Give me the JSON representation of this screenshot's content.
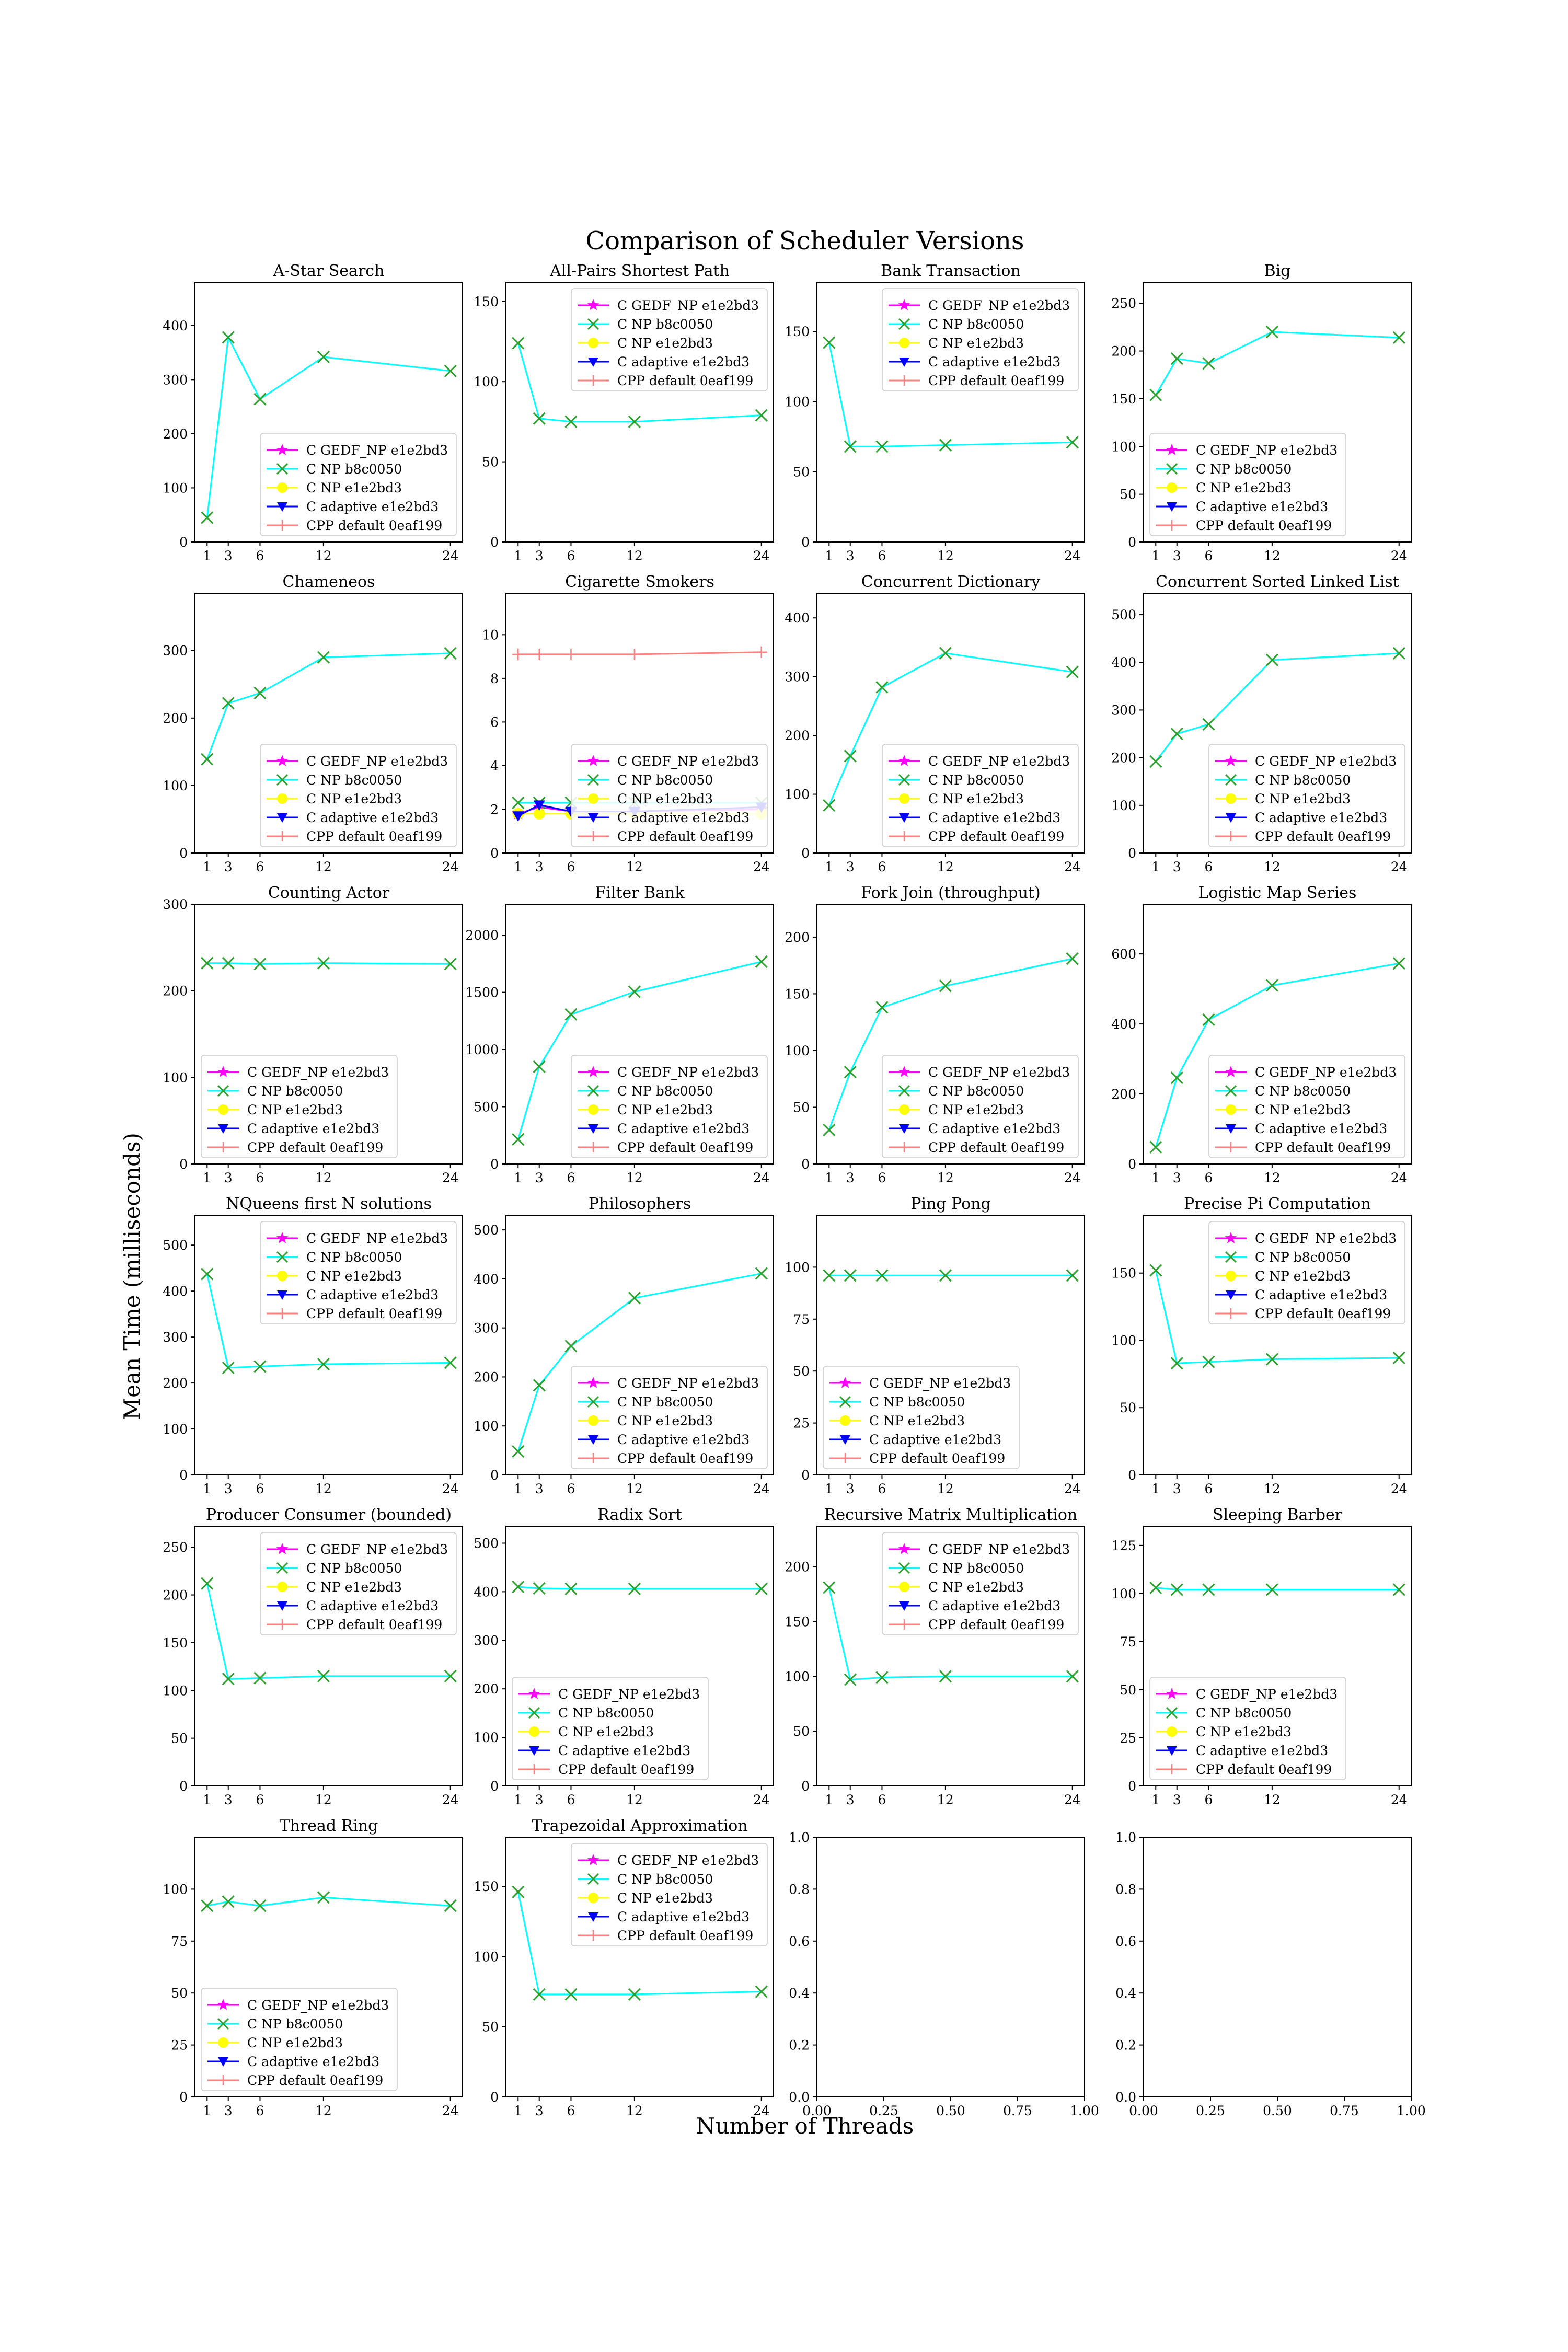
{
  "figure": {
    "suptitle": "Comparison of Scheduler Versions",
    "xlabel": "Number of Threads",
    "ylabel": "Mean Time (milliseconds)"
  },
  "series_styles": [
    {
      "name": "C GEDF_NP e1e2bd3",
      "color": "#ff00ff",
      "marker": "star"
    },
    {
      "name": "C NP b8c0050",
      "color": "#00ffff",
      "marker": "x",
      "marker_color": "#2ca02c"
    },
    {
      "name": "C NP e1e2bd3",
      "color": "#ffff00",
      "marker": "circle"
    },
    {
      "name": "C adaptive e1e2bd3",
      "color": "#0000ff",
      "marker": "triangle-down"
    },
    {
      "name": "CPP default 0eaf199",
      "color": "#ff8080",
      "marker": "plus"
    }
  ],
  "chart_data": [
    {
      "type": "line",
      "title": "A-Star Search",
      "x": [
        1,
        3,
        6,
        12,
        24
      ],
      "xticks": [
        1,
        3,
        6,
        12,
        24
      ],
      "ylim": [
        0,
        480
      ],
      "yticks": [
        0,
        100,
        200,
        300,
        400
      ],
      "legend": "lower-right",
      "series": [
        {
          "name": "C NP b8c0050",
          "values": [
            45,
            378,
            264,
            342,
            316
          ]
        }
      ]
    },
    {
      "type": "line",
      "title": "All-Pairs Shortest Path",
      "x": [
        1,
        3,
        6,
        12,
        24
      ],
      "xticks": [
        1,
        3,
        6,
        12,
        24
      ],
      "ylim": [
        0,
        162
      ],
      "yticks": [
        0,
        50,
        100,
        150
      ],
      "legend": "upper-right",
      "series": [
        {
          "name": "C NP b8c0050",
          "values": [
            124,
            77,
            75,
            75,
            79
          ]
        }
      ]
    },
    {
      "type": "line",
      "title": "Bank Transaction",
      "x": [
        1,
        3,
        6,
        12,
        24
      ],
      "xticks": [
        1,
        3,
        6,
        12,
        24
      ],
      "ylim": [
        0,
        185
      ],
      "yticks": [
        0,
        50,
        100,
        150
      ],
      "legend": "upper-right",
      "series": [
        {
          "name": "C NP b8c0050",
          "values": [
            142,
            68,
            68,
            69,
            71
          ]
        }
      ]
    },
    {
      "type": "line",
      "title": "Big",
      "x": [
        1,
        3,
        6,
        12,
        24
      ],
      "xticks": [
        1,
        3,
        6,
        12,
        24
      ],
      "ylim": [
        0,
        272
      ],
      "yticks": [
        0,
        50,
        100,
        150,
        200,
        250
      ],
      "legend": "lower-left",
      "series": [
        {
          "name": "C NP b8c0050",
          "values": [
            154,
            192,
            187,
            220,
            214
          ]
        }
      ]
    },
    {
      "type": "line",
      "title": "Chameneos",
      "x": [
        1,
        3,
        6,
        12,
        24
      ],
      "xticks": [
        1,
        3,
        6,
        12,
        24
      ],
      "ylim": [
        0,
        385
      ],
      "yticks": [
        0,
        100,
        200,
        300
      ],
      "legend": "lower-right",
      "series": [
        {
          "name": "C NP b8c0050",
          "values": [
            139,
            222,
            237,
            290,
            296
          ]
        }
      ]
    },
    {
      "type": "line",
      "title": "Cigarette Smokers",
      "x": [
        1,
        3,
        6,
        12,
        24
      ],
      "xticks": [
        1,
        3,
        6,
        12,
        24
      ],
      "ylim": [
        0,
        11.9
      ],
      "yticks": [
        0,
        2,
        4,
        6,
        8,
        10
      ],
      "legend": "lower-right",
      "series": [
        {
          "name": "C GEDF_NP e1e2bd3",
          "values": [
            1.8,
            2.1,
            1.9,
            1.9,
            2.0
          ]
        },
        {
          "name": "C NP b8c0050",
          "values": [
            2.3,
            2.3,
            2.3,
            2.3,
            2.3
          ]
        },
        {
          "name": "C NP e1e2bd3",
          "values": [
            1.8,
            1.8,
            1.8,
            1.8,
            1.8
          ]
        },
        {
          "name": "C adaptive e1e2bd3",
          "values": [
            1.7,
            2.2,
            1.9,
            1.9,
            2.1
          ]
        },
        {
          "name": "CPP default 0eaf199",
          "values": [
            9.1,
            9.1,
            9.1,
            9.1,
            9.2
          ]
        }
      ]
    },
    {
      "type": "line",
      "title": "Concurrent Dictionary",
      "x": [
        1,
        3,
        6,
        12,
        24
      ],
      "xticks": [
        1,
        3,
        6,
        12,
        24
      ],
      "ylim": [
        0,
        442
      ],
      "yticks": [
        0,
        100,
        200,
        300,
        400
      ],
      "legend": "lower-right",
      "series": [
        {
          "name": "C NP b8c0050",
          "values": [
            81,
            165,
            282,
            340,
            308
          ]
        }
      ]
    },
    {
      "type": "line",
      "title": "Concurrent Sorted Linked List",
      "x": [
        1,
        3,
        6,
        12,
        24
      ],
      "xticks": [
        1,
        3,
        6,
        12,
        24
      ],
      "ylim": [
        0,
        545
      ],
      "yticks": [
        0,
        100,
        200,
        300,
        400,
        500
      ],
      "legend": "lower-right",
      "series": [
        {
          "name": "C NP b8c0050",
          "values": [
            192,
            250,
            270,
            405,
            419
          ]
        }
      ]
    },
    {
      "type": "line",
      "title": "Counting Actor",
      "x": [
        1,
        3,
        6,
        12,
        24
      ],
      "xticks": [
        1,
        3,
        6,
        12,
        24
      ],
      "ylim": [
        0,
        300
      ],
      "yticks": [
        0,
        100,
        200,
        300
      ],
      "legend": "lower-left",
      "series": [
        {
          "name": "C NP b8c0050",
          "values": [
            232,
            232,
            231,
            232,
            231
          ]
        }
      ]
    },
    {
      "type": "line",
      "title": "Filter Bank",
      "x": [
        1,
        3,
        6,
        12,
        24
      ],
      "xticks": [
        1,
        3,
        6,
        12,
        24
      ],
      "ylim": [
        0,
        2270
      ],
      "yticks": [
        0,
        500,
        1000,
        1500,
        2000
      ],
      "legend": "lower-right",
      "series": [
        {
          "name": "C NP b8c0050",
          "values": [
            215,
            850,
            1307,
            1505,
            1768
          ]
        }
      ]
    },
    {
      "type": "line",
      "title": "Fork Join (throughput)",
      "x": [
        1,
        3,
        6,
        12,
        24
      ],
      "xticks": [
        1,
        3,
        6,
        12,
        24
      ],
      "ylim": [
        0,
        229
      ],
      "yticks": [
        0,
        50,
        100,
        150,
        200
      ],
      "legend": "lower-right",
      "series": [
        {
          "name": "C NP b8c0050",
          "values": [
            30,
            81,
            138,
            157,
            181
          ]
        }
      ]
    },
    {
      "type": "line",
      "title": "Logistic Map Series",
      "x": [
        1,
        3,
        6,
        12,
        24
      ],
      "xticks": [
        1,
        3,
        6,
        12,
        24
      ],
      "ylim": [
        0,
        742
      ],
      "yticks": [
        0,
        200,
        400,
        600
      ],
      "legend": "lower-right",
      "series": [
        {
          "name": "C NP b8c0050",
          "values": [
            48,
            246,
            412,
            510,
            573
          ]
        }
      ]
    },
    {
      "type": "line",
      "title": "NQueens first N solutions",
      "x": [
        1,
        3,
        6,
        12,
        24
      ],
      "xticks": [
        1,
        3,
        6,
        12,
        24
      ],
      "ylim": [
        0,
        565
      ],
      "yticks": [
        0,
        100,
        200,
        300,
        400,
        500
      ],
      "legend": "upper-right",
      "series": [
        {
          "name": "C NP b8c0050",
          "values": [
            437,
            233,
            236,
            241,
            244
          ]
        }
      ]
    },
    {
      "type": "line",
      "title": "Philosophers",
      "x": [
        1,
        3,
        6,
        12,
        24
      ],
      "xticks": [
        1,
        3,
        6,
        12,
        24
      ],
      "ylim": [
        0,
        530
      ],
      "yticks": [
        0,
        100,
        200,
        300,
        400,
        500
      ],
      "legend": "lower-right",
      "series": [
        {
          "name": "C NP b8c0050",
          "values": [
            48,
            183,
            263,
            361,
            411
          ]
        }
      ]
    },
    {
      "type": "line",
      "title": "Ping Pong",
      "x": [
        1,
        3,
        6,
        12,
        24
      ],
      "xticks": [
        1,
        3,
        6,
        12,
        24
      ],
      "ylim": [
        0,
        125
      ],
      "yticks": [
        0,
        25,
        50,
        75,
        100
      ],
      "legend": "lower-left",
      "series": [
        {
          "name": "C NP b8c0050",
          "values": [
            96,
            96,
            96,
            96,
            96
          ]
        }
      ]
    },
    {
      "type": "line",
      "title": "Precise Pi Computation",
      "x": [
        1,
        3,
        6,
        12,
        24
      ],
      "xticks": [
        1,
        3,
        6,
        12,
        24
      ],
      "ylim": [
        0,
        193
      ],
      "yticks": [
        0,
        50,
        100,
        150
      ],
      "legend": "upper-right",
      "series": [
        {
          "name": "C NP b8c0050",
          "values": [
            152,
            83,
            84,
            86,
            87
          ]
        }
      ]
    },
    {
      "type": "line",
      "title": "Producer Consumer (bounded)",
      "x": [
        1,
        3,
        6,
        12,
        24
      ],
      "xticks": [
        1,
        3,
        6,
        12,
        24
      ],
      "ylim": [
        0,
        272
      ],
      "yticks": [
        0,
        50,
        100,
        150,
        200,
        250
      ],
      "legend": "upper-right",
      "series": [
        {
          "name": "C NP b8c0050",
          "values": [
            212,
            112,
            113,
            115,
            115
          ]
        }
      ]
    },
    {
      "type": "line",
      "title": "Radix Sort",
      "x": [
        1,
        3,
        6,
        12,
        24
      ],
      "xticks": [
        1,
        3,
        6,
        12,
        24
      ],
      "ylim": [
        0,
        535
      ],
      "yticks": [
        0,
        100,
        200,
        300,
        400,
        500
      ],
      "legend": "lower-left",
      "series": [
        {
          "name": "C NP b8c0050",
          "values": [
            410,
            407,
            406,
            406,
            406
          ]
        }
      ]
    },
    {
      "type": "line",
      "title": "Recursive Matrix Multiplication",
      "x": [
        1,
        3,
        6,
        12,
        24
      ],
      "xticks": [
        1,
        3,
        6,
        12,
        24
      ],
      "ylim": [
        0,
        237
      ],
      "yticks": [
        0,
        50,
        100,
        150,
        200
      ],
      "legend": "upper-right",
      "series": [
        {
          "name": "C NP b8c0050",
          "values": [
            181,
            97,
            99,
            100,
            100
          ]
        }
      ]
    },
    {
      "type": "line",
      "title": "Sleeping Barber",
      "x": [
        1,
        3,
        6,
        12,
        24
      ],
      "xticks": [
        1,
        3,
        6,
        12,
        24
      ],
      "ylim": [
        0,
        135
      ],
      "yticks": [
        0,
        25,
        50,
        75,
        100,
        125
      ],
      "legend": "lower-left",
      "series": [
        {
          "name": "C NP b8c0050",
          "values": [
            103,
            102,
            102,
            102,
            102
          ]
        }
      ]
    },
    {
      "type": "line",
      "title": "Thread Ring",
      "x": [
        1,
        3,
        6,
        12,
        24
      ],
      "xticks": [
        1,
        3,
        6,
        12,
        24
      ],
      "ylim": [
        0,
        125
      ],
      "yticks": [
        0,
        25,
        50,
        75,
        100
      ],
      "legend": "lower-left",
      "series": [
        {
          "name": "C NP b8c0050",
          "values": [
            92,
            94,
            92,
            96,
            92
          ]
        }
      ]
    },
    {
      "type": "line",
      "title": "Trapezoidal Approximation",
      "x": [
        1,
        3,
        6,
        12,
        24
      ],
      "xticks": [
        1,
        3,
        6,
        12,
        24
      ],
      "ylim": [
        0,
        185
      ],
      "yticks": [
        0,
        50,
        100,
        150
      ],
      "legend": "upper-right",
      "series": [
        {
          "name": "C NP b8c0050",
          "values": [
            146,
            73,
            73,
            73,
            75
          ]
        }
      ]
    },
    {
      "type": "empty",
      "title": "",
      "xlim": [
        0,
        1
      ],
      "ylim": [
        0,
        1
      ],
      "xticks": [
        0.0,
        0.25,
        0.5,
        0.75,
        1.0
      ],
      "yticks": [
        0.0,
        0.2,
        0.4,
        0.6,
        0.8,
        1.0
      ],
      "xtick_labels": [
        "0.00",
        "0.25",
        "0.50",
        "0.75",
        "1.00"
      ],
      "ytick_labels": [
        "0.0",
        "0.2",
        "0.4",
        "0.6",
        "0.8",
        "1.0"
      ],
      "series": []
    },
    {
      "type": "empty",
      "title": "",
      "xlim": [
        0,
        1
      ],
      "ylim": [
        0,
        1
      ],
      "xticks": [
        0.0,
        0.25,
        0.5,
        0.75,
        1.0
      ],
      "yticks": [
        0.0,
        0.2,
        0.4,
        0.6,
        0.8,
        1.0
      ],
      "xtick_labels": [
        "0.00",
        "0.25",
        "0.50",
        "0.75",
        "1.00"
      ],
      "ytick_labels": [
        "0.0",
        "0.2",
        "0.4",
        "0.6",
        "0.8",
        "1.0"
      ],
      "series": []
    }
  ]
}
